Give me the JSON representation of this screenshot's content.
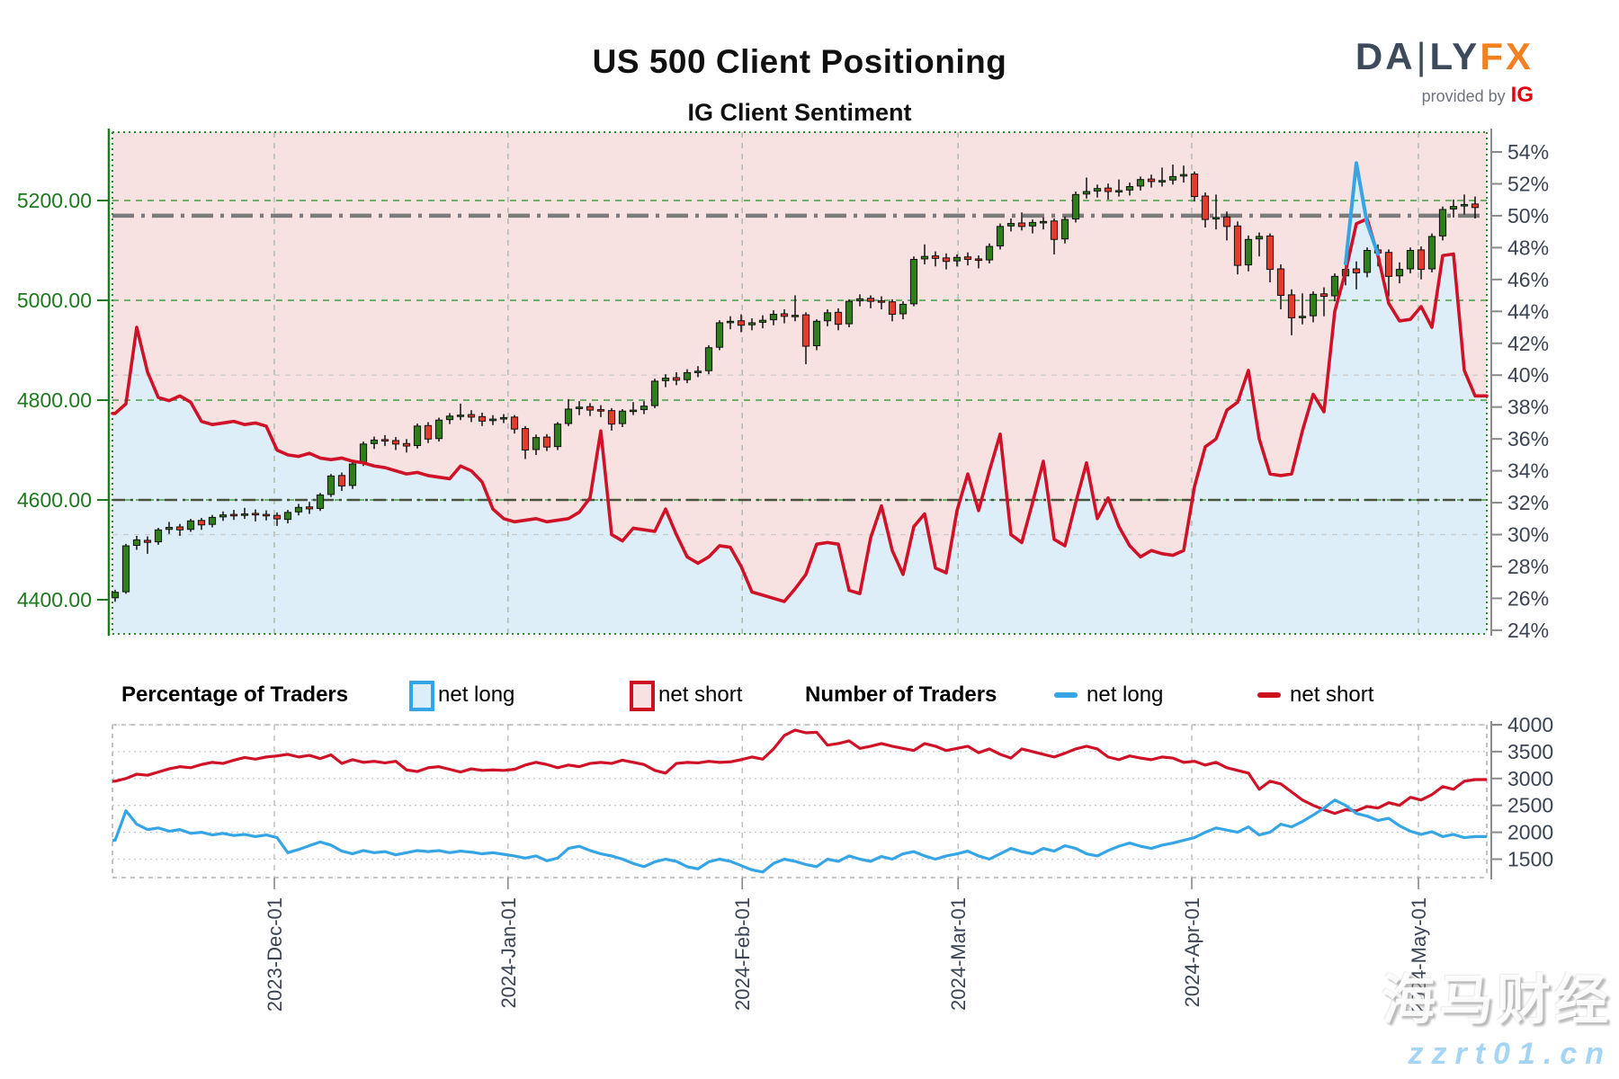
{
  "header": {
    "title": "US 500 Client Positioning",
    "subtitle": "IG Client Sentiment"
  },
  "logo": {
    "part1": "DA",
    "separator": "|",
    "part2": "LY",
    "part3": "FX",
    "provided_by": "provided by",
    "ig": "IG"
  },
  "legend": {
    "pct_title": "Percentage of Traders",
    "num_title": "Number of Traders",
    "net_long": "net long",
    "net_short": "net short",
    "net_long2": "net long",
    "net_short2": "net short"
  },
  "watermark": {
    "line1": "海马财经",
    "line2": "zzrt01.cn"
  },
  "colors": {
    "axis_green": "#1e7a1e",
    "axis_slate": "#3b4454",
    "red_line": "#d01228",
    "blue_line": "#35a5e5",
    "candle_green": "#2f7d1b",
    "candle_red": "#e53b2c",
    "pink_fill": "#f7e1e1",
    "blue_fill": "#ddeef8",
    "grid_green": "#45a045",
    "grid_gray": "#b3bcb3",
    "grid_faint": "#cccccc",
    "fifty_line": "#7b7b7b",
    "dark_line": "#49513f",
    "frame_gray": "#b3b3b3",
    "spine_gray": "#8a8a8a"
  },
  "chart_data": [
    {
      "type": "candlestick+line",
      "name": "price-and-sentiment-percent",
      "legend_position": "below",
      "grid": true,
      "y_left": {
        "tick_labels": [
          "5200.00",
          "5000.00",
          "4800.00",
          "4600.00",
          "4400.00"
        ],
        "tick_values": [
          5200,
          5000,
          4800,
          4600,
          4400
        ],
        "ylim": [
          4290,
          5330
        ]
      },
      "y_right": {
        "tick_labels": [
          "54%",
          "52%",
          "50%",
          "48%",
          "46%",
          "44%",
          "42%",
          "40%",
          "38%",
          "36%",
          "34%",
          "32%",
          "30%",
          "28%",
          "26%",
          "24%"
        ],
        "tick_values": [
          54,
          52,
          50,
          48,
          46,
          44,
          42,
          40,
          38,
          36,
          34,
          32,
          30,
          28,
          26,
          24
        ],
        "ylim": [
          23.8,
          55.2
        ]
      },
      "x_months": [
        {
          "label": "2023-Dec-01",
          "index": 14.75
        },
        {
          "label": "2024-Jan-01",
          "index": 36.4
        },
        {
          "label": "2024-Feb-01",
          "index": 58.1
        },
        {
          "label": "2024-Mar-01",
          "index": 78.1
        },
        {
          "label": "2024-Apr-01",
          "index": 99.75
        },
        {
          "label": "2024-May-01",
          "index": 120.75
        }
      ],
      "reference_lines": {
        "fifty_pct": 50,
        "price_dashdot": 4600,
        "faint_pct": [
          40,
          30
        ],
        "green_dashed_prices": [
          5200,
          5000,
          4800,
          4600
        ]
      },
      "candles_ohlc": [
        [
          4404,
          4420,
          4396,
          4415
        ],
        [
          4416,
          4512,
          4412,
          4508
        ],
        [
          4509,
          4528,
          4500,
          4520
        ],
        [
          4519,
          4527,
          4492,
          4515
        ],
        [
          4516,
          4544,
          4510,
          4540
        ],
        [
          4541,
          4556,
          4532,
          4545
        ],
        [
          4546,
          4552,
          4528,
          4540
        ],
        [
          4541,
          4562,
          4536,
          4558
        ],
        [
          4559,
          4564,
          4540,
          4550
        ],
        [
          4551,
          4570,
          4545,
          4565
        ],
        [
          4566,
          4577,
          4558,
          4570
        ],
        [
          4571,
          4580,
          4560,
          4568
        ],
        [
          4569,
          4584,
          4562,
          4572
        ],
        [
          4573,
          4581,
          4557,
          4570
        ],
        [
          4571,
          4579,
          4559,
          4568
        ],
        [
          4569,
          4575,
          4548,
          4562
        ],
        [
          4561,
          4580,
          4553,
          4575
        ],
        [
          4576,
          4592,
          4569,
          4585
        ],
        [
          4586,
          4596,
          4572,
          4582
        ],
        [
          4583,
          4614,
          4578,
          4610
        ],
        [
          4611,
          4652,
          4606,
          4648
        ],
        [
          4649,
          4655,
          4618,
          4628
        ],
        [
          4629,
          4676,
          4622,
          4672
        ],
        [
          4673,
          4717,
          4668,
          4712
        ],
        [
          4713,
          4727,
          4702,
          4720
        ],
        [
          4721,
          4730,
          4708,
          4718
        ],
        [
          4719,
          4726,
          4700,
          4712
        ],
        [
          4713,
          4722,
          4695,
          4708
        ],
        [
          4709,
          4753,
          4703,
          4748
        ],
        [
          4749,
          4756,
          4714,
          4722
        ],
        [
          4723,
          4765,
          4717,
          4760
        ],
        [
          4761,
          4774,
          4752,
          4768
        ],
        [
          4769,
          4793,
          4760,
          4770
        ],
        [
          4771,
          4780,
          4756,
          4766
        ],
        [
          4767,
          4775,
          4748,
          4758
        ],
        [
          4759,
          4770,
          4750,
          4762
        ],
        [
          4763,
          4772,
          4754,
          4765
        ],
        [
          4766,
          4770,
          4733,
          4742
        ],
        [
          4743,
          4748,
          4682,
          4700
        ],
        [
          4701,
          4731,
          4690,
          4725
        ],
        [
          4726,
          4732,
          4698,
          4706
        ],
        [
          4707,
          4756,
          4700,
          4752
        ],
        [
          4753,
          4802,
          4748,
          4782
        ],
        [
          4783,
          4798,
          4770,
          4786
        ],
        [
          4787,
          4794,
          4768,
          4780
        ],
        [
          4781,
          4790,
          4766,
          4778
        ],
        [
          4779,
          4784,
          4739,
          4752
        ],
        [
          4753,
          4782,
          4746,
          4778
        ],
        [
          4779,
          4796,
          4770,
          4780
        ],
        [
          4781,
          4798,
          4772,
          4788
        ],
        [
          4789,
          4843,
          4784,
          4838
        ],
        [
          4839,
          4852,
          4826,
          4844
        ],
        [
          4845,
          4856,
          4830,
          4840
        ],
        [
          4841,
          4862,
          4834,
          4855
        ],
        [
          4856,
          4868,
          4846,
          4858
        ],
        [
          4859,
          4910,
          4852,
          4905
        ],
        [
          4906,
          4960,
          4900,
          4955
        ],
        [
          4956,
          4968,
          4942,
          4958
        ],
        [
          4959,
          4972,
          4936,
          4950
        ],
        [
          4951,
          4964,
          4940,
          4955
        ],
        [
          4956,
          4970,
          4944,
          4960
        ],
        [
          4961,
          4980,
          4950,
          4972
        ],
        [
          4973,
          4982,
          4954,
          4968
        ],
        [
          4969,
          5010,
          4958,
          4970
        ],
        [
          4971,
          4976,
          4872,
          4908
        ],
        [
          4909,
          4962,
          4900,
          4958
        ],
        [
          4959,
          4982,
          4948,
          4975
        ],
        [
          4976,
          4984,
          4940,
          4952
        ],
        [
          4953,
          5002,
          4946,
          4998
        ],
        [
          4999,
          5012,
          4988,
          5003
        ],
        [
          5004,
          5010,
          4984,
          4998
        ],
        [
          4999,
          5008,
          4982,
          4996
        ],
        [
          4997,
          5002,
          4958,
          4972
        ],
        [
          4973,
          4998,
          4962,
          4992
        ],
        [
          4993,
          5088,
          4988,
          5082
        ],
        [
          5083,
          5112,
          5072,
          5088
        ],
        [
          5089,
          5098,
          5068,
          5084
        ],
        [
          5085,
          5094,
          5062,
          5078
        ],
        [
          5079,
          5092,
          5068,
          5086
        ],
        [
          5087,
          5096,
          5070,
          5082
        ],
        [
          5083,
          5090,
          5064,
          5080
        ],
        [
          5081,
          5114,
          5074,
          5108
        ],
        [
          5109,
          5154,
          5102,
          5148
        ],
        [
          5149,
          5164,
          5138,
          5154
        ],
        [
          5155,
          5176,
          5140,
          5148
        ],
        [
          5149,
          5162,
          5134,
          5156
        ],
        [
          5157,
          5166,
          5142,
          5158
        ],
        [
          5159,
          5164,
          5092,
          5122
        ],
        [
          5123,
          5168,
          5114,
          5162
        ],
        [
          5163,
          5218,
          5156,
          5212
        ],
        [
          5213,
          5246,
          5204,
          5218
        ],
        [
          5219,
          5232,
          5206,
          5224
        ],
        [
          5225,
          5234,
          5202,
          5218
        ],
        [
          5219,
          5242,
          5208,
          5220
        ],
        [
          5221,
          5236,
          5210,
          5228
        ],
        [
          5229,
          5248,
          5220,
          5242
        ],
        [
          5243,
          5252,
          5226,
          5238
        ],
        [
          5239,
          5266,
          5228,
          5240
        ],
        [
          5241,
          5272,
          5232,
          5248
        ],
        [
          5249,
          5270,
          5236,
          5252
        ],
        [
          5253,
          5258,
          5198,
          5208
        ],
        [
          5209,
          5216,
          5146,
          5162
        ],
        [
          5163,
          5212,
          5142,
          5166
        ],
        [
          5167,
          5178,
          5120,
          5148
        ],
        [
          5149,
          5158,
          5052,
          5070
        ],
        [
          5071,
          5130,
          5058,
          5122
        ],
        [
          5123,
          5136,
          5088,
          5128
        ],
        [
          5129,
          5134,
          5036,
          5062
        ],
        [
          5063,
          5072,
          4982,
          5010
        ],
        [
          5011,
          5022,
          4930,
          4965
        ],
        [
          4966,
          5014,
          4952,
          4968
        ],
        [
          4969,
          5018,
          4956,
          5012
        ],
        [
          5013,
          5026,
          4968,
          5008
        ],
        [
          5009,
          5054,
          4998,
          5048
        ],
        [
          5049,
          5072,
          5030,
          5062
        ],
        [
          5063,
          5078,
          5022,
          5055
        ],
        [
          5056,
          5106,
          5046,
          5100
        ],
        [
          5101,
          5112,
          5068,
          5095
        ],
        [
          5096,
          5102,
          5008,
          5048
        ],
        [
          5049,
          5076,
          5034,
          5062
        ],
        [
          5063,
          5106,
          5054,
          5100
        ],
        [
          5101,
          5108,
          5042,
          5062
        ],
        [
          5063,
          5134,
          5056,
          5128
        ],
        [
          5129,
          5188,
          5120,
          5182
        ],
        [
          5183,
          5202,
          5166,
          5188
        ],
        [
          5189,
          5212,
          5172,
          5192
        ],
        [
          5193,
          5208,
          5164,
          5186
        ]
      ],
      "net_short_pct": [
        37.6,
        38.2,
        43.0,
        40.2,
        38.6,
        38.4,
        38.7,
        38.3,
        37.1,
        36.9,
        37.0,
        37.1,
        36.9,
        37.0,
        36.8,
        35.3,
        35.0,
        34.9,
        35.1,
        34.8,
        34.7,
        34.8,
        34.6,
        34.5,
        34.3,
        34.2,
        34.0,
        33.8,
        33.9,
        33.7,
        33.6,
        33.5,
        34.3,
        34.0,
        33.3,
        31.6,
        31.0,
        30.8,
        30.9,
        31.0,
        30.8,
        30.9,
        31.0,
        31.4,
        32.3,
        36.5,
        30.0,
        29.6,
        30.4,
        30.3,
        30.2,
        31.6,
        30.0,
        28.6,
        28.2,
        28.6,
        29.3,
        29.2,
        28.0,
        26.4,
        26.2,
        26.0,
        25.8,
        26.6,
        27.5,
        29.4,
        29.5,
        29.4,
        26.5,
        26.3,
        29.8,
        31.8,
        29.0,
        27.5,
        30.5,
        31.3,
        27.9,
        27.6,
        31.5,
        33.8,
        31.5,
        34.0,
        36.3,
        30.0,
        29.5,
        32.0,
        34.6,
        29.7,
        29.3,
        32.0,
        34.5,
        31.0,
        32.3,
        30.5,
        29.3,
        28.6,
        29.0,
        28.8,
        28.7,
        29.0,
        33.0,
        35.5,
        36.0,
        37.8,
        38.3,
        40.3,
        36.0,
        33.8,
        33.7,
        33.8,
        36.5,
        38.8,
        37.7,
        44.0,
        46.5,
        49.5,
        49.8,
        47.5,
        44.5,
        43.4,
        43.5,
        44.3,
        43.0,
        47.5,
        47.6,
        40.3,
        38.7
      ],
      "net_long_pct_segment": {
        "start_index": 114,
        "values": [
          47.0,
          53.3,
          49.5,
          47.6
        ]
      }
    },
    {
      "type": "line",
      "name": "number-of-traders",
      "grid": true,
      "y_right": {
        "tick_labels": [
          "4000",
          "3500",
          "3000",
          "2500",
          "2000",
          "1500"
        ],
        "tick_values": [
          4000,
          3500,
          3000,
          2500,
          2000,
          1500
        ],
        "ylim": [
          1170,
          4100
        ]
      },
      "net_short_num": [
        2950,
        3000,
        3080,
        3060,
        3120,
        3180,
        3220,
        3200,
        3260,
        3300,
        3280,
        3340,
        3390,
        3360,
        3400,
        3420,
        3450,
        3400,
        3430,
        3370,
        3440,
        3280,
        3350,
        3300,
        3320,
        3290,
        3320,
        3160,
        3130,
        3200,
        3220,
        3170,
        3120,
        3180,
        3150,
        3160,
        3150,
        3170,
        3250,
        3300,
        3260,
        3200,
        3250,
        3220,
        3280,
        3300,
        3280,
        3340,
        3300,
        3260,
        3150,
        3100,
        3280,
        3300,
        3290,
        3320,
        3300,
        3310,
        3350,
        3400,
        3360,
        3550,
        3800,
        3900,
        3850,
        3860,
        3620,
        3650,
        3700,
        3560,
        3600,
        3650,
        3600,
        3560,
        3520,
        3650,
        3600,
        3520,
        3560,
        3600,
        3480,
        3550,
        3450,
        3380,
        3550,
        3500,
        3450,
        3400,
        3470,
        3550,
        3600,
        3550,
        3400,
        3350,
        3420,
        3380,
        3350,
        3400,
        3380,
        3300,
        3320,
        3250,
        3300,
        3200,
        3150,
        3100,
        2800,
        2950,
        2900,
        2750,
        2600,
        2500,
        2420,
        2350,
        2420,
        2400,
        2480,
        2450,
        2550,
        2500,
        2650,
        2600,
        2700,
        2850,
        2800,
        2950,
        2980
      ],
      "net_long_num": [
        1850,
        2400,
        2150,
        2050,
        2080,
        2020,
        2050,
        1980,
        2000,
        1950,
        1980,
        1940,
        1960,
        1920,
        1950,
        1900,
        1620,
        1680,
        1750,
        1820,
        1760,
        1650,
        1600,
        1660,
        1620,
        1640,
        1580,
        1620,
        1660,
        1640,
        1660,
        1620,
        1650,
        1630,
        1600,
        1620,
        1590,
        1560,
        1520,
        1560,
        1470,
        1520,
        1700,
        1740,
        1660,
        1600,
        1560,
        1500,
        1420,
        1360,
        1450,
        1500,
        1460,
        1360,
        1320,
        1450,
        1500,
        1460,
        1380,
        1300,
        1260,
        1420,
        1500,
        1460,
        1400,
        1360,
        1500,
        1460,
        1560,
        1500,
        1460,
        1550,
        1500,
        1600,
        1640,
        1560,
        1500,
        1560,
        1600,
        1650,
        1560,
        1500,
        1600,
        1700,
        1640,
        1600,
        1700,
        1650,
        1750,
        1700,
        1600,
        1560,
        1660,
        1740,
        1800,
        1740,
        1700,
        1760,
        1800,
        1850,
        1900,
        2000,
        2080,
        2040,
        2000,
        2100,
        1950,
        2000,
        2150,
        2100,
        2200,
        2320,
        2450,
        2600,
        2500,
        2350,
        2300,
        2220,
        2260,
        2120,
        2020,
        1960,
        2010,
        1920,
        1960,
        1900,
        1920
      ]
    }
  ]
}
